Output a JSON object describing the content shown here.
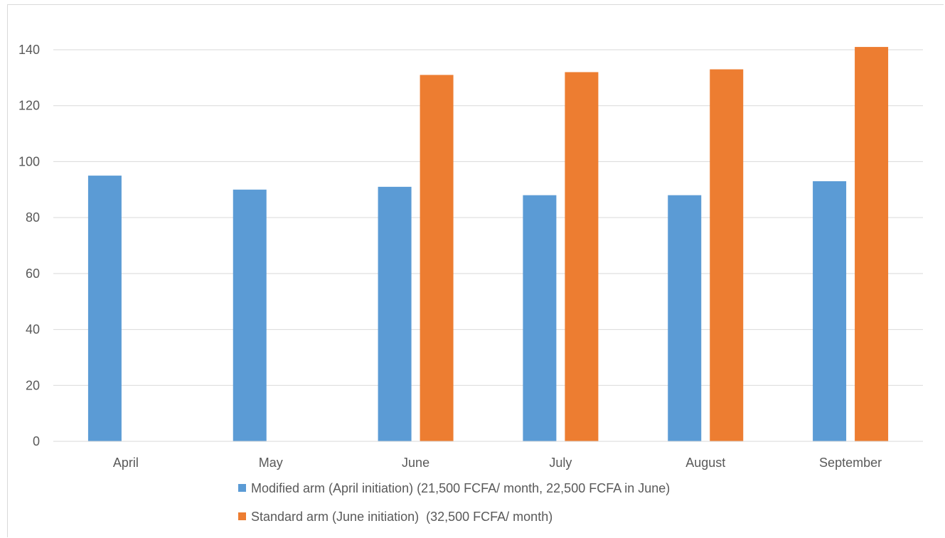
{
  "chart_data": {
    "type": "bar",
    "categories": [
      "April",
      "May",
      "June",
      "July",
      "August",
      "September"
    ],
    "series": [
      {
        "name": "Modified arm (April initiation) (21,500 FCFA/ month, 22,500 FCFA in June)",
        "color": "#5b9bd5",
        "values": [
          95,
          90,
          91,
          88,
          88,
          93
        ]
      },
      {
        "name": "Standard arm (June initiation)  (32,500 FCFA/ month)",
        "color": "#ed7d31",
        "values": [
          null,
          null,
          131,
          132,
          133,
          141
        ]
      }
    ],
    "ylim": [
      0,
      150
    ],
    "yticks": [
      0,
      20,
      40,
      60,
      80,
      100,
      120,
      140
    ],
    "grid": true,
    "legend_position": "bottom",
    "title": "",
    "xlabel": "",
    "ylabel": ""
  }
}
